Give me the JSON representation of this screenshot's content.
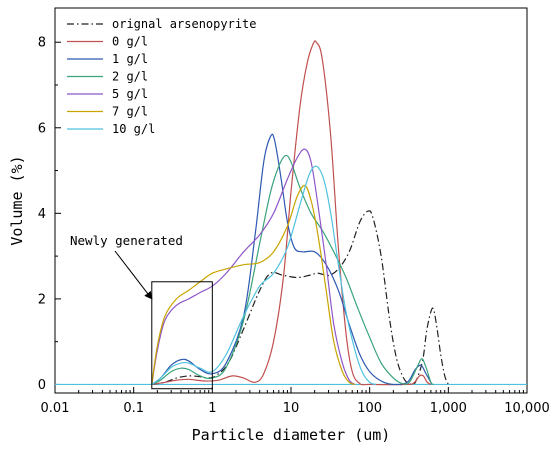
{
  "chart_data": {
    "type": "line",
    "xlabel": "Particle diameter (um)",
    "ylabel": "Volume (%)",
    "xscale": "log",
    "xlim": [
      0.01,
      10000
    ],
    "ylim": [
      -0.2,
      8.8
    ],
    "x_ticks": [
      {
        "value": 0.01,
        "label": "0.01"
      },
      {
        "value": 0.1,
        "label": "0.1"
      },
      {
        "value": 1,
        "label": "1"
      },
      {
        "value": 10,
        "label": "10"
      },
      {
        "value": 100,
        "label": "100"
      },
      {
        "value": 1000,
        "label": "1,000"
      },
      {
        "value": 10000,
        "label": "10,000"
      }
    ],
    "y_ticks": [
      {
        "value": 0,
        "label": "0"
      },
      {
        "value": 2,
        "label": "2"
      },
      {
        "value": 4,
        "label": "4"
      },
      {
        "value": 6,
        "label": "6"
      },
      {
        "value": 8,
        "label": "8"
      }
    ],
    "legend_position": "top-left",
    "series": [
      {
        "name": "orignal arsenopyrite",
        "color": "#222222",
        "dash": "dashdot",
        "points": [
          [
            0.17,
            0
          ],
          [
            0.25,
            0.05
          ],
          [
            0.35,
            0.15
          ],
          [
            0.5,
            0.2
          ],
          [
            0.7,
            0.18
          ],
          [
            0.9,
            0.15
          ],
          [
            1.1,
            0.2
          ],
          [
            1.6,
            0.5
          ],
          [
            2.5,
            1.3
          ],
          [
            4,
            2.2
          ],
          [
            5.5,
            2.6
          ],
          [
            8,
            2.55
          ],
          [
            12,
            2.5
          ],
          [
            17,
            2.55
          ],
          [
            22,
            2.6
          ],
          [
            30,
            2.55
          ],
          [
            40,
            2.7
          ],
          [
            55,
            3.1
          ],
          [
            75,
            3.8
          ],
          [
            95,
            4.05
          ],
          [
            110,
            3.9
          ],
          [
            140,
            3.0
          ],
          [
            180,
            1.5
          ],
          [
            220,
            0.6
          ],
          [
            270,
            0.15
          ],
          [
            320,
            0.02
          ],
          [
            380,
            0.05
          ],
          [
            470,
            0.55
          ],
          [
            530,
            1.25
          ],
          [
            600,
            1.7
          ],
          [
            650,
            1.75
          ],
          [
            720,
            1.3
          ],
          [
            800,
            0.7
          ],
          [
            900,
            0.2
          ],
          [
            1000,
            0
          ]
        ]
      },
      {
        "name": "0 g/l",
        "color": "#c0504d",
        "dash": "solid",
        "points": [
          [
            0.17,
            0
          ],
          [
            0.25,
            0.05
          ],
          [
            0.35,
            0.1
          ],
          [
            0.5,
            0.12
          ],
          [
            0.8,
            0.08
          ],
          [
            1.2,
            0.1
          ],
          [
            1.8,
            0.2
          ],
          [
            2.5,
            0.15
          ],
          [
            3.5,
            0.05
          ],
          [
            4.5,
            0.25
          ],
          [
            6,
            1.0
          ],
          [
            8,
            2.5
          ],
          [
            10,
            4.5
          ],
          [
            13,
            6.5
          ],
          [
            16,
            7.5
          ],
          [
            19,
            7.95
          ],
          [
            21,
            8.0
          ],
          [
            25,
            7.6
          ],
          [
            32,
            5.8
          ],
          [
            40,
            3.2
          ],
          [
            50,
            1.2
          ],
          [
            60,
            0.3
          ],
          [
            75,
            0.02
          ],
          [
            100,
            0
          ],
          [
            300,
            0
          ],
          [
            370,
            0.05
          ],
          [
            430,
            0.2
          ],
          [
            480,
            0.2
          ],
          [
            540,
            0.05
          ],
          [
            600,
            0
          ]
        ]
      },
      {
        "name": "1 g/l",
        "color": "#2e59b0",
        "dash": "solid",
        "points": [
          [
            0.17,
            0
          ],
          [
            0.22,
            0.15
          ],
          [
            0.3,
            0.45
          ],
          [
            0.4,
            0.58
          ],
          [
            0.5,
            0.55
          ],
          [
            0.7,
            0.35
          ],
          [
            1,
            0.25
          ],
          [
            1.5,
            0.5
          ],
          [
            2.5,
            1.6
          ],
          [
            3.5,
            3.5
          ],
          [
            4.5,
            5.2
          ],
          [
            5.5,
            5.8
          ],
          [
            6.2,
            5.7
          ],
          [
            7.5,
            4.8
          ],
          [
            9,
            3.8
          ],
          [
            11,
            3.2
          ],
          [
            14,
            3.1
          ],
          [
            20,
            3.1
          ],
          [
            28,
            2.8
          ],
          [
            40,
            2.2
          ],
          [
            55,
            1.4
          ],
          [
            75,
            0.7
          ],
          [
            100,
            0.3
          ],
          [
            140,
            0.08
          ],
          [
            200,
            0
          ],
          [
            300,
            0.05
          ],
          [
            380,
            0.35
          ],
          [
            450,
            0.45
          ],
          [
            520,
            0.25
          ],
          [
            620,
            0
          ]
        ]
      },
      {
        "name": "2 g/l",
        "color": "#3aa37a",
        "dash": "solid",
        "points": [
          [
            0.17,
            0
          ],
          [
            0.22,
            0.1
          ],
          [
            0.3,
            0.3
          ],
          [
            0.4,
            0.38
          ],
          [
            0.5,
            0.35
          ],
          [
            0.7,
            0.2
          ],
          [
            1,
            0.15
          ],
          [
            1.5,
            0.4
          ],
          [
            2.5,
            1.5
          ],
          [
            4,
            3.3
          ],
          [
            5.5,
            4.5
          ],
          [
            7,
            5.1
          ],
          [
            8.5,
            5.35
          ],
          [
            10,
            5.2
          ],
          [
            13,
            4.6
          ],
          [
            18,
            4.0
          ],
          [
            25,
            3.6
          ],
          [
            35,
            3.1
          ],
          [
            50,
            2.5
          ],
          [
            70,
            1.8
          ],
          [
            100,
            1.1
          ],
          [
            140,
            0.5
          ],
          [
            200,
            0.15
          ],
          [
            260,
            0.02
          ],
          [
            320,
            0.05
          ],
          [
            400,
            0.4
          ],
          [
            460,
            0.6
          ],
          [
            520,
            0.4
          ],
          [
            600,
            0.05
          ],
          [
            650,
            0
          ]
        ]
      },
      {
        "name": "5 g/l",
        "color": "#8e57c8",
        "dash": "solid",
        "points": [
          [
            0.17,
            0
          ],
          [
            0.2,
            0.8
          ],
          [
            0.25,
            1.5
          ],
          [
            0.35,
            1.85
          ],
          [
            0.5,
            2.0
          ],
          [
            0.7,
            2.15
          ],
          [
            1,
            2.3
          ],
          [
            1.5,
            2.6
          ],
          [
            2.5,
            3.1
          ],
          [
            4,
            3.5
          ],
          [
            6,
            4.0
          ],
          [
            9,
            4.8
          ],
          [
            12,
            5.3
          ],
          [
            15,
            5.5
          ],
          [
            18,
            5.2
          ],
          [
            22,
            4.2
          ],
          [
            28,
            2.8
          ],
          [
            35,
            1.4
          ],
          [
            45,
            0.5
          ],
          [
            55,
            0.1
          ],
          [
            65,
            0
          ]
        ]
      },
      {
        "name": "7 g/l",
        "color": "#c9a400",
        "dash": "solid",
        "points": [
          [
            0.17,
            0
          ],
          [
            0.2,
            0.9
          ],
          [
            0.25,
            1.6
          ],
          [
            0.35,
            2.0
          ],
          [
            0.5,
            2.2
          ],
          [
            0.7,
            2.4
          ],
          [
            1,
            2.6
          ],
          [
            1.5,
            2.7
          ],
          [
            2.5,
            2.8
          ],
          [
            4,
            2.85
          ],
          [
            6,
            3.1
          ],
          [
            9,
            3.7
          ],
          [
            12,
            4.4
          ],
          [
            15,
            4.65
          ],
          [
            18,
            4.3
          ],
          [
            22,
            3.5
          ],
          [
            28,
            2.2
          ],
          [
            35,
            1.0
          ],
          [
            45,
            0.3
          ],
          [
            55,
            0.05
          ],
          [
            65,
            0
          ]
        ]
      },
      {
        "name": "10 g/l",
        "color": "#4fc1e0",
        "dash": "solid",
        "points": [
          [
            0.17,
            0
          ],
          [
            0.22,
            0.15
          ],
          [
            0.3,
            0.4
          ],
          [
            0.4,
            0.5
          ],
          [
            0.5,
            0.5
          ],
          [
            0.7,
            0.38
          ],
          [
            1,
            0.3
          ],
          [
            1.5,
            0.7
          ],
          [
            2.5,
            1.6
          ],
          [
            4,
            2.3
          ],
          [
            6,
            2.6
          ],
          [
            9,
            3.2
          ],
          [
            13,
            4.2
          ],
          [
            17,
            4.9
          ],
          [
            21,
            5.1
          ],
          [
            26,
            4.8
          ],
          [
            32,
            4.0
          ],
          [
            40,
            2.8
          ],
          [
            50,
            1.7
          ],
          [
            65,
            0.8
          ],
          [
            80,
            0.3
          ],
          [
            100,
            0.05
          ],
          [
            120,
            0
          ]
        ]
      }
    ],
    "annotation": {
      "text": "Newly generated",
      "box_x": [
        0.17,
        1.0
      ],
      "box_y": [
        -0.1,
        2.4
      ],
      "arrow_to": [
        0.17,
        2.0
      ]
    }
  }
}
